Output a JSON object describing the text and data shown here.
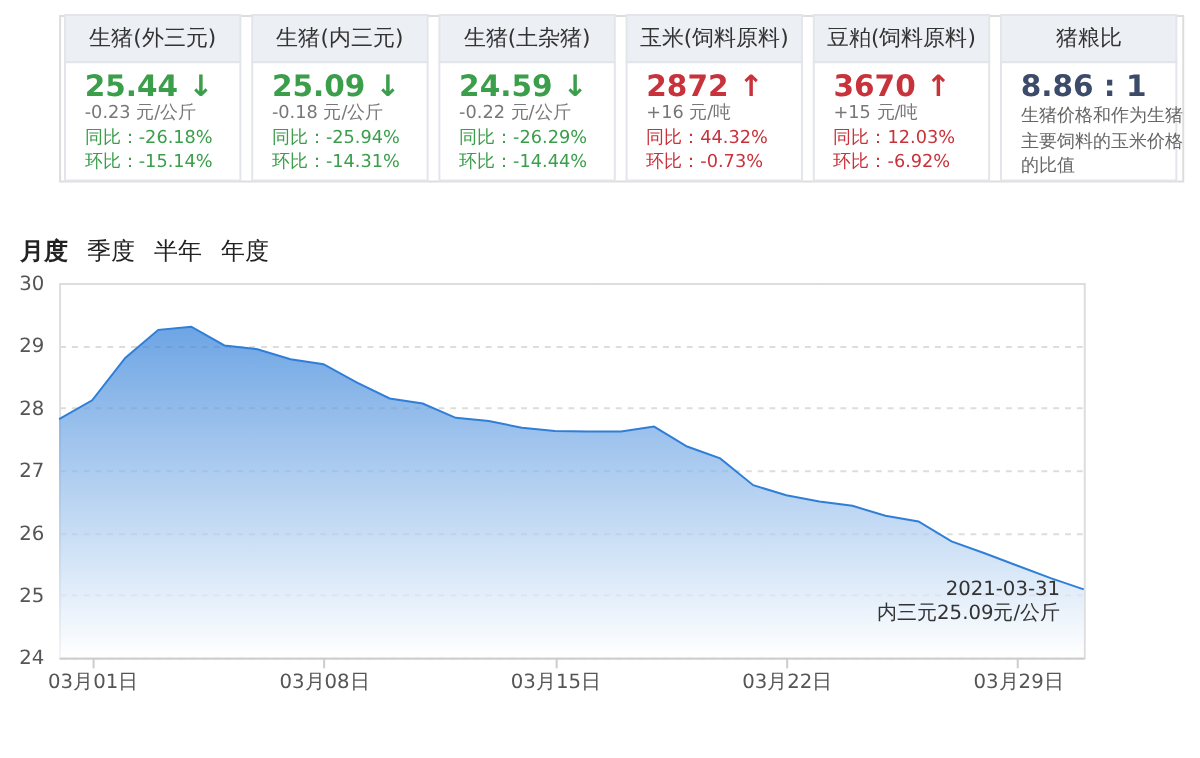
{
  "chart_data": [
    {
      "type": "other",
      "categories": [
        "生猪(外三元)",
        "生猪(内三元)",
        "生猪(土杂猪)",
        "玉米(饲料原料)",
        "豆粕(饲料原料)",
        "猪粮比"
      ],
      "annotations": [
        "25.44 ↓",
        "-0.23 元/公斤",
        "同比：-26.18%",
        "环比：-15.14%",
        "25.09 ↓",
        "-0.18 元/公斤",
        "同比：-25.94%",
        "环比：-14.31%",
        "24.59 ↓",
        "-0.22 元/公斤",
        "同比：-26.29%",
        "环比：-14.44%",
        "2872 ↑",
        "+16 元/吨",
        "同比：44.32%",
        "环比：-0.73%",
        "3670 ↑",
        "+15 元/吨",
        "同比：12.03%",
        "环比：-6.92%",
        "8.86 : 1",
        "生猪价格和作为生猪",
        "主要饲料的玉米价格",
        "的比值"
      ]
    },
    {
      "type": "area",
      "x": [
        "2021-02-28",
        "2021-03-01",
        "2021-03-02",
        "2021-03-03",
        "2021-03-04",
        "2021-03-05",
        "2021-03-06",
        "2021-03-07",
        "2021-03-08",
        "2021-03-09",
        "2021-03-10",
        "2021-03-11",
        "2021-03-12",
        "2021-03-13",
        "2021-03-14",
        "2021-03-15",
        "2021-03-16",
        "2021-03-17",
        "2021-03-18",
        "2021-03-19",
        "2021-03-20",
        "2021-03-21",
        "2021-03-22",
        "2021-03-23",
        "2021-03-24",
        "2021-03-25",
        "2021-03-26",
        "2021-03-27",
        "2021-03-28",
        "2021-03-29",
        "2021-03-30",
        "2021-03-31"
      ],
      "series": [
        {
          "color": "#2f7ed8",
          "values": [
            27.82,
            28.12,
            28.8,
            29.25,
            29.3,
            29.0,
            28.94,
            28.78,
            28.7,
            28.41,
            28.15,
            28.07,
            27.84,
            27.79,
            27.68,
            27.63,
            27.62,
            27.62,
            27.7,
            27.38,
            27.19,
            26.76,
            26.6,
            26.5,
            26.43,
            26.27,
            26.18,
            25.86,
            25.67,
            25.47,
            25.27,
            25.09
          ]
        }
      ],
      "xlim": [
        "2021-02-28",
        "2021-03-31"
      ],
      "xticks": [
        {
          "value": "2021-03-01",
          "label": "03月01日"
        },
        {
          "value": "2021-03-08",
          "label": "03月08日"
        },
        {
          "value": "2021-03-15",
          "label": "03月15日"
        },
        {
          "value": "2021-03-22",
          "label": "03月22日"
        },
        {
          "value": "2021-03-29",
          "label": "03月29日"
        }
      ],
      "ylim": [
        24,
        30
      ],
      "yticks": [
        24,
        25,
        26,
        27,
        28,
        29,
        30
      ],
      "grid": "y",
      "annotations": [
        "月度",
        "季度",
        "半年",
        "年度",
        {
          "text": "2021-03-31\n内三元25.09元/公斤",
          "x": "2021-03-31",
          "y": 25.09
        }
      ]
    }
  ]
}
